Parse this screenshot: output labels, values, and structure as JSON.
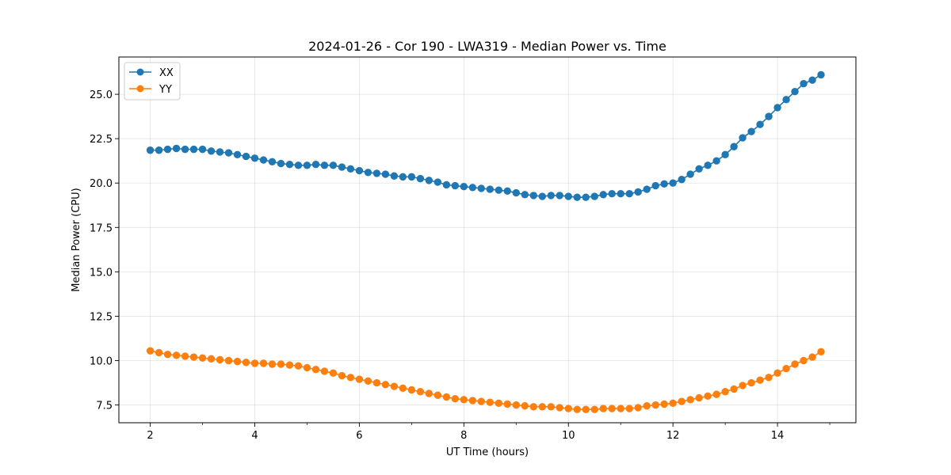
{
  "chart_data": {
    "type": "line",
    "title": "2024-01-26 - Cor 190 - LWA319 - Median Power vs. Time",
    "xlabel": "UT Time (hours)",
    "ylabel": "Median Power (CPU)",
    "xlim": [
      1.4,
      15.5
    ],
    "ylim": [
      6.5,
      27.1
    ],
    "xticks": [
      2,
      4,
      6,
      8,
      10,
      12,
      14
    ],
    "xtick_labels": [
      "2",
      "4",
      "6",
      "8",
      "10",
      "12",
      "14"
    ],
    "yticks": [
      7.5,
      10.0,
      12.5,
      15.0,
      17.5,
      20.0,
      22.5,
      25.0
    ],
    "ytick_labels": [
      "7.5",
      "10.0",
      "12.5",
      "15.0",
      "17.5",
      "20.0",
      "22.5",
      "25.0"
    ],
    "grid": true,
    "legend_position": "top-left",
    "x": [
      2.0,
      2.167,
      2.333,
      2.5,
      2.667,
      2.833,
      3.0,
      3.167,
      3.333,
      3.5,
      3.667,
      3.833,
      4.0,
      4.167,
      4.333,
      4.5,
      4.667,
      4.833,
      5.0,
      5.167,
      5.333,
      5.5,
      5.667,
      5.833,
      6.0,
      6.167,
      6.333,
      6.5,
      6.667,
      6.833,
      7.0,
      7.167,
      7.333,
      7.5,
      7.667,
      7.833,
      8.0,
      8.167,
      8.333,
      8.5,
      8.667,
      8.833,
      9.0,
      9.167,
      9.333,
      9.5,
      9.667,
      9.833,
      10.0,
      10.167,
      10.333,
      10.5,
      10.667,
      10.833,
      11.0,
      11.167,
      11.333,
      11.5,
      11.667,
      11.833,
      12.0,
      12.167,
      12.333,
      12.5,
      12.667,
      12.833,
      13.0,
      13.167,
      13.333,
      13.5,
      13.667,
      13.833,
      14.0,
      14.167,
      14.333,
      14.5,
      14.667,
      14.833
    ],
    "series": [
      {
        "name": "XX",
        "color": "#1f77b4",
        "values": [
          21.85,
          21.85,
          21.9,
          21.95,
          21.9,
          21.9,
          21.9,
          21.8,
          21.75,
          21.7,
          21.6,
          21.5,
          21.4,
          21.3,
          21.2,
          21.1,
          21.05,
          21.0,
          21.0,
          21.05,
          21.0,
          21.0,
          20.9,
          20.8,
          20.7,
          20.6,
          20.55,
          20.5,
          20.4,
          20.35,
          20.35,
          20.25,
          20.15,
          20.05,
          19.9,
          19.85,
          19.8,
          19.75,
          19.7,
          19.65,
          19.6,
          19.55,
          19.45,
          19.35,
          19.3,
          19.25,
          19.3,
          19.3,
          19.25,
          19.2,
          19.2,
          19.25,
          19.35,
          19.4,
          19.4,
          19.4,
          19.5,
          19.65,
          19.85,
          19.95,
          20.0,
          20.2,
          20.5,
          20.8,
          21.0,
          21.25,
          21.6,
          22.05,
          22.55,
          22.9,
          23.3,
          23.75,
          24.25,
          24.7,
          25.15,
          25.6,
          25.8,
          26.1
        ]
      },
      {
        "name": "YY",
        "color": "#ff7f0e",
        "values": [
          10.55,
          10.45,
          10.35,
          10.3,
          10.25,
          10.2,
          10.15,
          10.1,
          10.05,
          10.0,
          9.95,
          9.9,
          9.85,
          9.85,
          9.8,
          9.8,
          9.75,
          9.7,
          9.6,
          9.5,
          9.4,
          9.3,
          9.15,
          9.05,
          8.95,
          8.85,
          8.75,
          8.65,
          8.55,
          8.45,
          8.35,
          8.25,
          8.15,
          8.05,
          7.95,
          7.85,
          7.8,
          7.75,
          7.7,
          7.65,
          7.6,
          7.55,
          7.5,
          7.45,
          7.4,
          7.4,
          7.4,
          7.35,
          7.3,
          7.25,
          7.25,
          7.25,
          7.3,
          7.3,
          7.3,
          7.3,
          7.35,
          7.45,
          7.5,
          7.55,
          7.6,
          7.7,
          7.8,
          7.9,
          8.0,
          8.1,
          8.25,
          8.4,
          8.6,
          8.75,
          8.9,
          9.05,
          9.3,
          9.55,
          9.8,
          10.0,
          10.2,
          10.5
        ]
      }
    ]
  }
}
